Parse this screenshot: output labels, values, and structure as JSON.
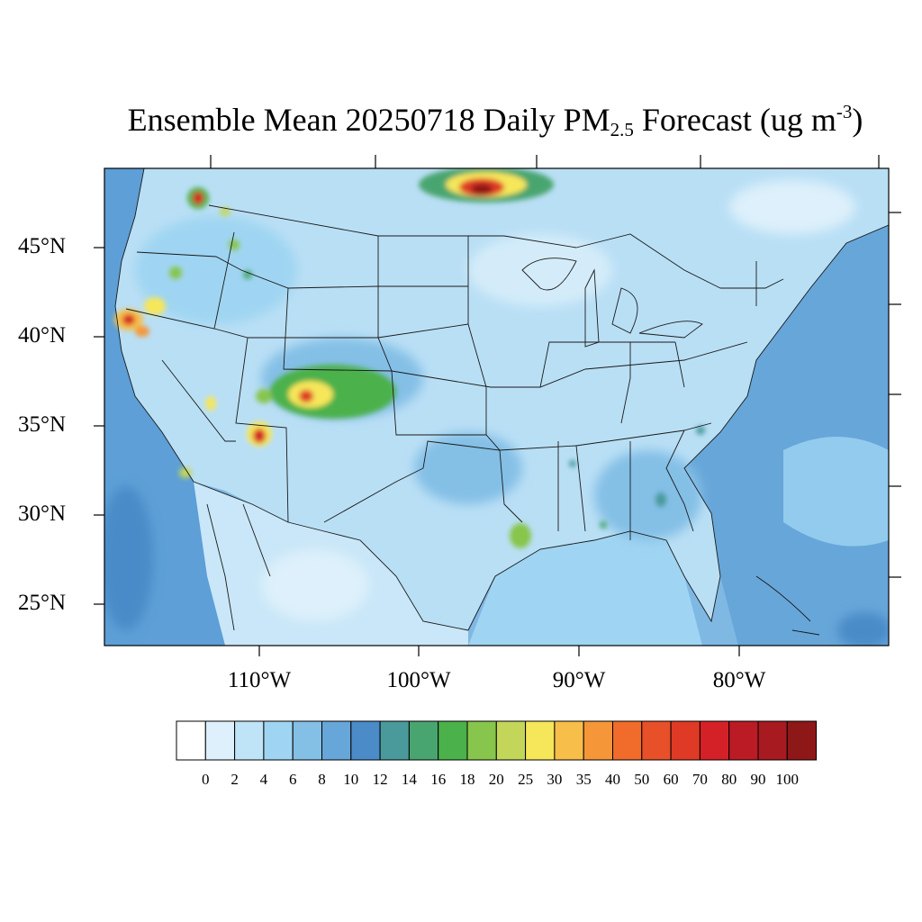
{
  "title": {
    "prefix": "Ensemble Mean 20250718 Daily PM",
    "subscript": "2.5",
    "middle": " Forecast (ug m",
    "superscript": "-3",
    "suffix": ")"
  },
  "axes": {
    "lat_labels": [
      "45°N",
      "40°N",
      "35°N",
      "30°N",
      "25°N"
    ],
    "lon_labels": [
      "110°W",
      "100°W",
      "90°W",
      "80°W"
    ]
  },
  "colorbar": {
    "tick_labels": [
      "0",
      "2",
      "4",
      "6",
      "8",
      "10",
      "12",
      "14",
      "16",
      "18",
      "20",
      "25",
      "30",
      "35",
      "40",
      "50",
      "60",
      "70",
      "80",
      "90",
      "100"
    ],
    "colors": [
      "#ffffff",
      "#ddf0fb",
      "#bfe4f7",
      "#9fd5f2",
      "#84bfe6",
      "#67a6d9",
      "#4a8bc8",
      "#4a9a9b",
      "#49a570",
      "#4bb14b",
      "#87c54c",
      "#c4d65a",
      "#f6e65a",
      "#f7bf4a",
      "#f59638",
      "#f16b2a",
      "#e85029",
      "#df3a26",
      "#d42128",
      "#bb1b25",
      "#a71a1f",
      "#8e1718"
    ]
  },
  "map_colors": {
    "ocean": "#67a6d9",
    "land": "#bfe4f7",
    "hotspot_high": "#d42128"
  }
}
